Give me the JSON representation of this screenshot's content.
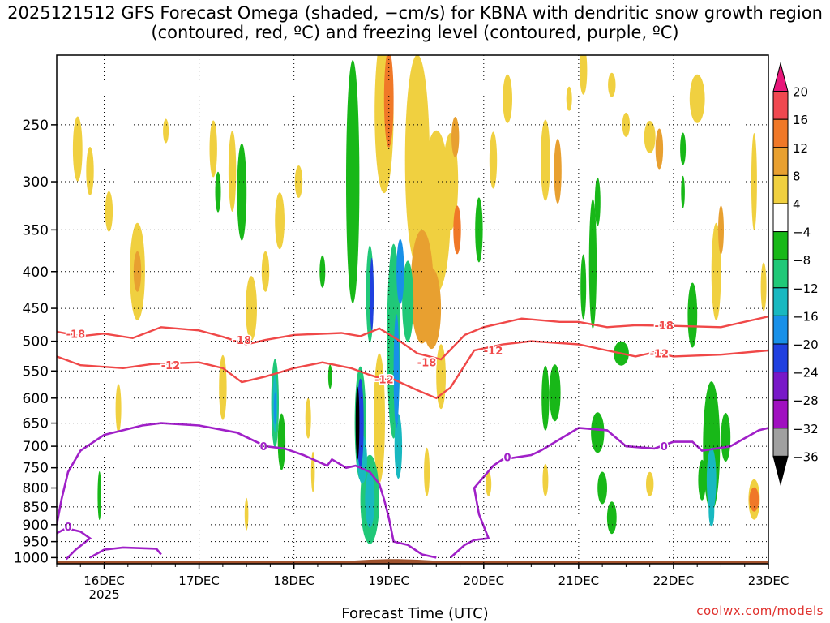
{
  "title": "2025121512 GFS Forecast Omega (shaded, −cm/s) for KBNA with dendritic snow growth region (contoured, red, ºC) and freezing level (contoured, purple, ºC)",
  "credit": "coolwx.com/models",
  "chart_data": {
    "type": "heatmap",
    "xlabel": "Forecast Time (UTC)",
    "ylabel": "",
    "x_axis": {
      "ticks": [
        "16DEC",
        "17DEC",
        "18DEC",
        "19DEC",
        "20DEC",
        "21DEC",
        "22DEC",
        "23DEC"
      ],
      "sub_label": "2025",
      "range_days": [
        15.5,
        23.0
      ]
    },
    "y_axis": {
      "scale": "log-pressure",
      "inverted": true,
      "ticks": [
        250,
        300,
        350,
        400,
        450,
        500,
        550,
        600,
        650,
        700,
        750,
        800,
        850,
        900,
        950,
        1000
      ],
      "range_hPa": [
        200,
        1020
      ]
    },
    "grid": true,
    "colorbar": {
      "position": "right",
      "labels": [
        "20",
        "16",
        "12",
        "8",
        "4",
        "−4",
        "−8",
        "−12",
        "−16",
        "−20",
        "−24",
        "−28",
        "−32",
        "−36"
      ],
      "colors": [
        "#e8177a",
        "#f04850",
        "#f07828",
        "#e8a030",
        "#f0d040",
        "#ffffff",
        "#18b818",
        "#20c878",
        "#18b8c0",
        "#1890e8",
        "#2040e0",
        "#7818c8",
        "#a010c0",
        "#a0a0a0",
        "#000000"
      ]
    },
    "contours": {
      "dendritic_zone": {
        "color": "#f04848",
        "levels": [
          -18,
          -12
        ],
        "labels": [
          "-18",
          "-18",
          "-18",
          "-18",
          "-12",
          "-12",
          "-12",
          "-12"
        ],
        "series": [
          {
            "name": "-18",
            "points": [
              [
                15.5,
                485
              ],
              [
                15.75,
                492
              ],
              [
                16.0,
                488
              ],
              [
                16.3,
                495
              ],
              [
                16.6,
                478
              ],
              [
                17.0,
                483
              ],
              [
                17.25,
                493
              ],
              [
                17.5,
                505
              ],
              [
                17.7,
                498
              ],
              [
                18.0,
                490
              ],
              [
                18.5,
                487
              ],
              [
                18.7,
                492
              ],
              [
                18.9,
                480
              ],
              [
                19.1,
                498
              ],
              [
                19.3,
                520
              ],
              [
                19.55,
                530
              ],
              [
                19.8,
                490
              ],
              [
                20.0,
                478
              ],
              [
                20.4,
                465
              ],
              [
                20.8,
                470
              ],
              [
                21.0,
                470
              ],
              [
                21.3,
                478
              ],
              [
                21.6,
                475
              ],
              [
                22.0,
                476
              ],
              [
                22.5,
                478
              ],
              [
                23.0,
                462
              ]
            ]
          },
          {
            "name": "-12",
            "points": [
              [
                15.5,
                525
              ],
              [
                15.75,
                540
              ],
              [
                16.2,
                545
              ],
              [
                16.5,
                538
              ],
              [
                17.0,
                535
              ],
              [
                17.25,
                545
              ],
              [
                17.45,
                570
              ],
              [
                17.7,
                560
              ],
              [
                18.0,
                545
              ],
              [
                18.3,
                535
              ],
              [
                18.6,
                545
              ],
              [
                18.8,
                557
              ],
              [
                18.95,
                565
              ],
              [
                19.05,
                565
              ],
              [
                19.3,
                585
              ],
              [
                19.5,
                600
              ],
              [
                19.65,
                580
              ],
              [
                19.9,
                515
              ],
              [
                20.2,
                505
              ],
              [
                20.5,
                500
              ],
              [
                21.0,
                505
              ],
              [
                21.3,
                515
              ],
              [
                21.6,
                525
              ],
              [
                21.8,
                518
              ],
              [
                22.0,
                525
              ],
              [
                22.5,
                522
              ],
              [
                23.0,
                515
              ]
            ]
          }
        ]
      },
      "freezing_level": {
        "color": "#a020c8",
        "label": "0",
        "series": [
          {
            "name": "0",
            "points": [
              [
                15.5,
                900
              ],
              [
                15.55,
                830
              ],
              [
                15.62,
                760
              ],
              [
                15.75,
                710
              ],
              [
                16.0,
                675
              ],
              [
                16.4,
                655
              ],
              [
                16.6,
                650
              ],
              [
                17.0,
                655
              ],
              [
                17.4,
                670
              ],
              [
                17.7,
                700
              ],
              [
                17.9,
                705
              ],
              [
                18.1,
                720
              ],
              [
                18.35,
                745
              ],
              [
                18.4,
                730
              ],
              [
                18.55,
                750
              ],
              [
                18.65,
                745
              ],
              [
                18.8,
                760
              ],
              [
                18.9,
                790
              ],
              [
                18.95,
                830
              ],
              [
                19.0,
                880
              ],
              [
                19.05,
                950
              ],
              [
                19.2,
                960
              ],
              [
                19.35,
                990
              ],
              [
                19.5,
                1000
              ]
            ]
          },
          {
            "name": "0",
            "points": [
              [
                19.65,
                1000
              ],
              [
                19.8,
                960
              ],
              [
                19.9,
                945
              ],
              [
                20.05,
                940
              ],
              [
                19.95,
                870
              ],
              [
                19.9,
                800
              ],
              [
                20.1,
                745
              ],
              [
                20.2,
                730
              ],
              [
                20.5,
                720
              ],
              [
                20.6,
                710
              ],
              [
                21.0,
                660
              ],
              [
                21.3,
                665
              ],
              [
                21.5,
                700
              ],
              [
                21.8,
                705
              ],
              [
                22.0,
                690
              ],
              [
                22.2,
                690
              ],
              [
                22.3,
                710
              ],
              [
                22.6,
                700
              ],
              [
                22.9,
                665
              ],
              [
                23.0,
                660
              ]
            ]
          },
          {
            "name": "0",
            "points": [
              [
                15.5,
                925
              ],
              [
                15.6,
                910
              ],
              [
                15.75,
                920
              ],
              [
                15.85,
                940
              ],
              [
                15.7,
                975
              ],
              [
                15.6,
                1005
              ]
            ]
          },
          {
            "name": "0",
            "points": [
              [
                15.85,
                1000
              ],
              [
                16.0,
                975
              ],
              [
                16.2,
                968
              ],
              [
                16.55,
                972
              ],
              [
                16.6,
                990
              ]
            ]
          }
        ]
      }
    },
    "ground": {
      "color": "#a0522d",
      "surface_hPa": 1010
    }
  }
}
